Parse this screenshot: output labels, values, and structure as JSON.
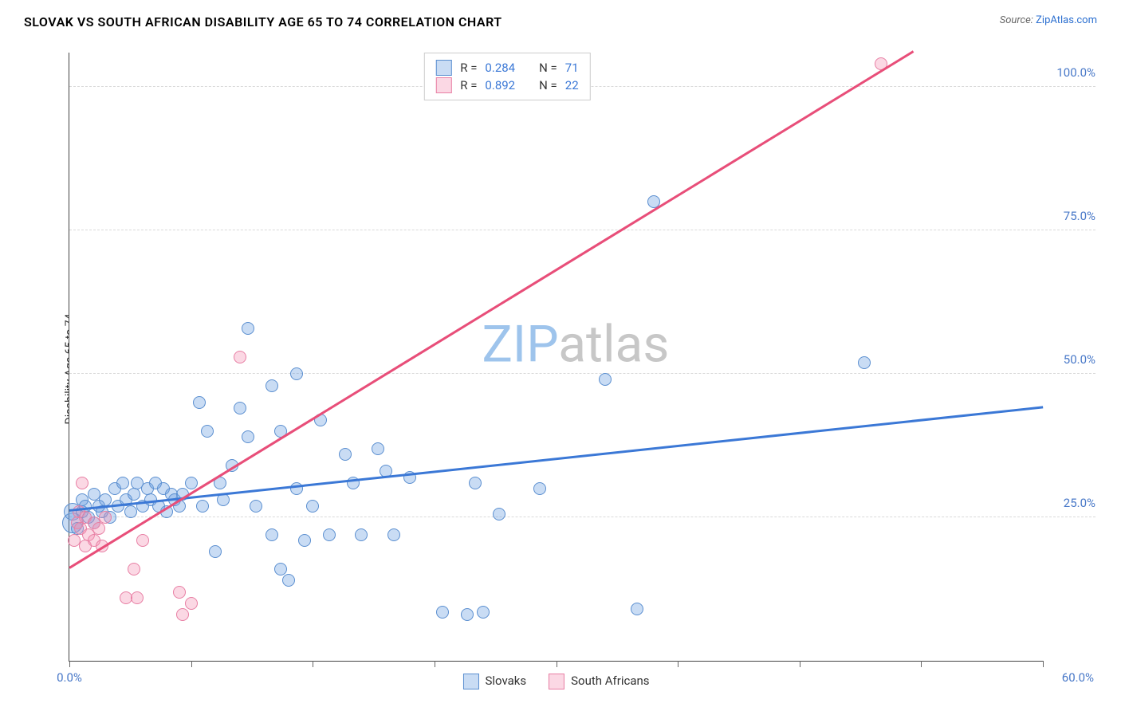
{
  "title": "SLOVAK VS SOUTH AFRICAN DISABILITY AGE 65 TO 74 CORRELATION CHART",
  "title_color": "#333333",
  "source_label": "Source:",
  "source_value": "ZipAtlas.com",
  "source_color": "#2b6fd0",
  "ylabel": "Disability Age 65 to 74",
  "watermark_zip": "ZIP",
  "watermark_atlas": "atlas",
  "watermark_zip_color": "#9ec4ec",
  "watermark_atlas_color": "#c7c7c7",
  "chart": {
    "type": "scatter",
    "xlim": [
      0,
      60
    ],
    "ylim": [
      0,
      106
    ],
    "background_color": "#ffffff",
    "grid_color": "#d9d9d9",
    "axis_color": "#444444",
    "ytick_values": [
      25,
      50,
      75,
      100
    ],
    "ytick_labels": [
      "25.0%",
      "50.0%",
      "75.0%",
      "100.0%"
    ],
    "ytick_color": "#4878c8",
    "xtick_values": [
      0,
      7.5,
      15,
      22.5,
      30,
      37.5,
      45,
      52.5,
      60
    ],
    "xtick_left_label": "0.0%",
    "xtick_right_label": "60.0%",
    "xtick_color": "#4878c8",
    "marker_size": 16,
    "marker_size_large": 26,
    "series": [
      {
        "name": "Slovaks",
        "fill_color": "rgba(99,155,224,0.35)",
        "border_color": "#5b8fd0",
        "r_label": "R =",
        "r_value": "0.284",
        "n_label": "N =",
        "n_value": "71",
        "trend": {
          "color": "#3b78d6",
          "x1": 0,
          "y1": 26,
          "x2": 60,
          "y2": 44
        },
        "points": [
          {
            "x": 0.2,
            "y": 24,
            "s": 26
          },
          {
            "x": 0.2,
            "y": 26,
            "s": 22
          },
          {
            "x": 0.5,
            "y": 23
          },
          {
            "x": 0.8,
            "y": 26
          },
          {
            "x": 0.8,
            "y": 28
          },
          {
            "x": 1.0,
            "y": 27
          },
          {
            "x": 1.2,
            "y": 25
          },
          {
            "x": 1.5,
            "y": 29
          },
          {
            "x": 1.5,
            "y": 24
          },
          {
            "x": 1.8,
            "y": 27
          },
          {
            "x": 2.0,
            "y": 26
          },
          {
            "x": 2.2,
            "y": 28
          },
          {
            "x": 2.5,
            "y": 25
          },
          {
            "x": 2.8,
            "y": 30
          },
          {
            "x": 3.0,
            "y": 27
          },
          {
            "x": 3.3,
            "y": 31
          },
          {
            "x": 3.5,
            "y": 28
          },
          {
            "x": 3.8,
            "y": 26
          },
          {
            "x": 4.0,
            "y": 29
          },
          {
            "x": 4.2,
            "y": 31
          },
          {
            "x": 4.5,
            "y": 27
          },
          {
            "x": 4.8,
            "y": 30
          },
          {
            "x": 5.0,
            "y": 28
          },
          {
            "x": 5.3,
            "y": 31
          },
          {
            "x": 5.5,
            "y": 27
          },
          {
            "x": 5.8,
            "y": 30
          },
          {
            "x": 6.0,
            "y": 26
          },
          {
            "x": 6.3,
            "y": 29
          },
          {
            "x": 6.5,
            "y": 28
          },
          {
            "x": 6.8,
            "y": 27
          },
          {
            "x": 7.0,
            "y": 29
          },
          {
            "x": 7.5,
            "y": 31
          },
          {
            "x": 8.0,
            "y": 45
          },
          {
            "x": 8.2,
            "y": 27
          },
          {
            "x": 8.5,
            "y": 40
          },
          {
            "x": 9.0,
            "y": 19
          },
          {
            "x": 9.3,
            "y": 31
          },
          {
            "x": 9.5,
            "y": 28
          },
          {
            "x": 10,
            "y": 34
          },
          {
            "x": 10.5,
            "y": 44
          },
          {
            "x": 11,
            "y": 39
          },
          {
            "x": 11,
            "y": 58
          },
          {
            "x": 11.5,
            "y": 27
          },
          {
            "x": 12.5,
            "y": 22
          },
          {
            "x": 12.5,
            "y": 48
          },
          {
            "x": 13,
            "y": 16
          },
          {
            "x": 13,
            "y": 40
          },
          {
            "x": 13.5,
            "y": 14
          },
          {
            "x": 14,
            "y": 30
          },
          {
            "x": 14,
            "y": 50
          },
          {
            "x": 14.5,
            "y": 21
          },
          {
            "x": 15,
            "y": 27
          },
          {
            "x": 15.5,
            "y": 42
          },
          {
            "x": 16,
            "y": 22
          },
          {
            "x": 17,
            "y": 36
          },
          {
            "x": 17.5,
            "y": 31
          },
          {
            "x": 18,
            "y": 22
          },
          {
            "x": 19,
            "y": 37
          },
          {
            "x": 19.5,
            "y": 33
          },
          {
            "x": 20,
            "y": 22
          },
          {
            "x": 21,
            "y": 32
          },
          {
            "x": 23,
            "y": 8.5
          },
          {
            "x": 24.5,
            "y": 8
          },
          {
            "x": 25,
            "y": 31
          },
          {
            "x": 25.5,
            "y": 8.5
          },
          {
            "x": 26.5,
            "y": 25.5
          },
          {
            "x": 29,
            "y": 30
          },
          {
            "x": 33,
            "y": 49
          },
          {
            "x": 35,
            "y": 9
          },
          {
            "x": 36,
            "y": 80
          },
          {
            "x": 49,
            "y": 52
          }
        ]
      },
      {
        "name": "South Africans",
        "fill_color": "rgba(244,143,177,0.35)",
        "border_color": "#e87fa4",
        "r_label": "R =",
        "r_value": "0.892",
        "n_label": "N =",
        "n_value": "22",
        "trend": {
          "color": "#e84e79",
          "x1": 0,
          "y1": 16,
          "x2": 52,
          "y2": 106
        },
        "points": [
          {
            "x": 0.3,
            "y": 21
          },
          {
            "x": 0.5,
            "y": 24
          },
          {
            "x": 0.6,
            "y": 26
          },
          {
            "x": 0.7,
            "y": 23
          },
          {
            "x": 0.8,
            "y": 31
          },
          {
            "x": 1.0,
            "y": 20
          },
          {
            "x": 1.0,
            "y": 25
          },
          {
            "x": 1.2,
            "y": 22
          },
          {
            "x": 1.5,
            "y": 21
          },
          {
            "x": 1.5,
            "y": 24
          },
          {
            "x": 1.8,
            "y": 23
          },
          {
            "x": 2.0,
            "y": 20
          },
          {
            "x": 2.2,
            "y": 25
          },
          {
            "x": 3.5,
            "y": 11
          },
          {
            "x": 4.0,
            "y": 16
          },
          {
            "x": 4.2,
            "y": 11
          },
          {
            "x": 4.5,
            "y": 21
          },
          {
            "x": 6.8,
            "y": 12
          },
          {
            "x": 7.0,
            "y": 8
          },
          {
            "x": 7.5,
            "y": 10
          },
          {
            "x": 10.5,
            "y": 53
          },
          {
            "x": 50,
            "y": 104
          }
        ]
      }
    ]
  },
  "legend_top_value_color": "#3b78d6",
  "legend_top_label_color": "#333333"
}
